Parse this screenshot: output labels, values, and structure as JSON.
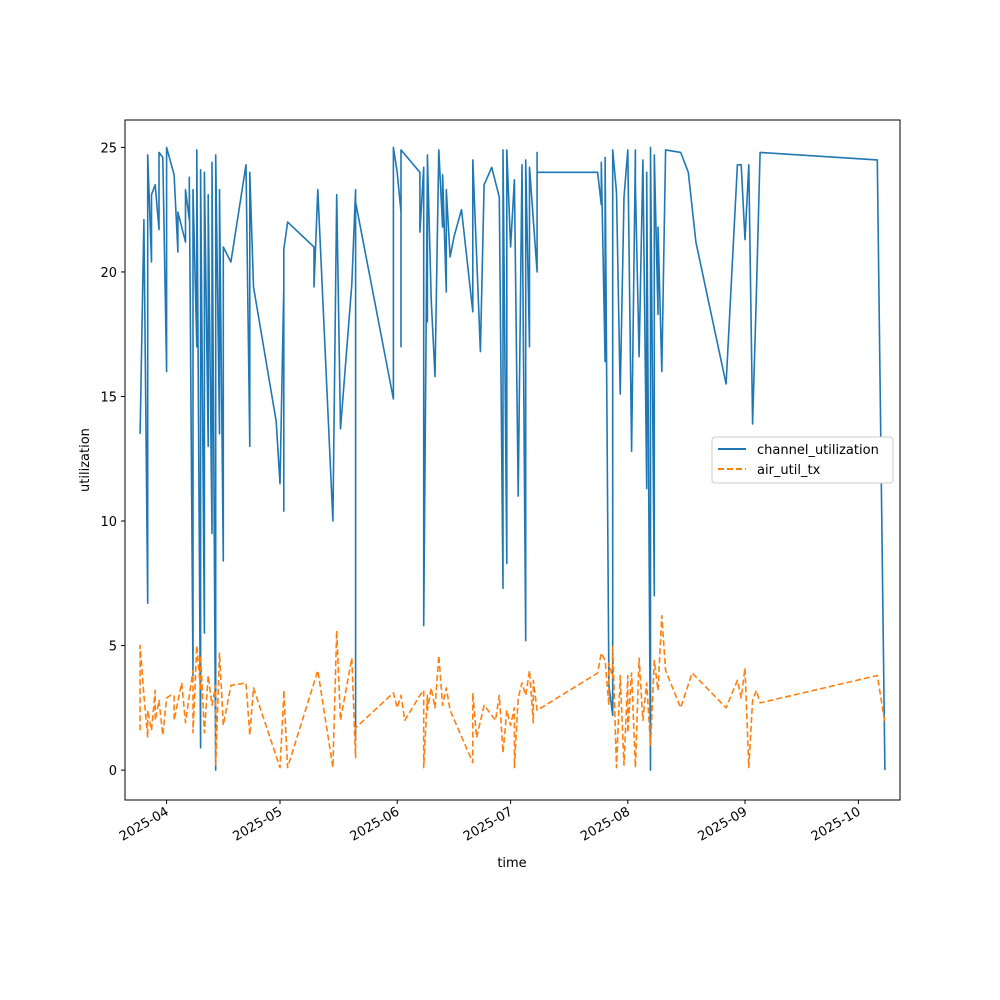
{
  "chart_data": {
    "type": "line",
    "title": "",
    "xlabel": "time",
    "ylabel": "utilization",
    "xlim": [
      "2025-03-21",
      "2025-10-12"
    ],
    "ylim": [
      -1.2,
      26.1
    ],
    "x_ticks": [
      "2025-04-01",
      "2025-05-01",
      "2025-06-01",
      "2025-07-01",
      "2025-08-01",
      "2025-09-01",
      "2025-10-01"
    ],
    "x_tick_labels": [
      "2025-04",
      "2025-05",
      "2025-06",
      "2025-07",
      "2025-08",
      "2025-09",
      "2025-10"
    ],
    "y_ticks": [
      0,
      5,
      10,
      15,
      20,
      25
    ],
    "grid": false,
    "legend_position": "center-right",
    "series": [
      {
        "name": "channel_utilization",
        "color": "#1f77b4",
        "style": "solid",
        "points": [
          [
            "2025-03-25",
            13.5
          ],
          [
            "2025-03-26",
            22.1
          ],
          [
            "2025-03-27",
            6.7
          ],
          [
            "2025-03-27",
            24.7
          ],
          [
            "2025-03-28",
            20.4
          ],
          [
            "2025-03-28",
            23.1
          ],
          [
            "2025-03-29",
            23.5
          ],
          [
            "2025-03-30",
            21.7
          ],
          [
            "2025-03-30",
            24.8
          ],
          [
            "2025-03-31",
            24.6
          ],
          [
            "2025-04-01",
            16.0
          ],
          [
            "2025-04-01",
            25.0
          ],
          [
            "2025-04-03",
            23.9
          ],
          [
            "2025-04-04",
            20.8
          ],
          [
            "2025-04-04",
            22.4
          ],
          [
            "2025-04-06",
            21.2
          ],
          [
            "2025-04-06",
            23.3
          ],
          [
            "2025-04-07",
            22.1
          ],
          [
            "2025-04-07",
            23.8
          ],
          [
            "2025-04-08",
            3.8
          ],
          [
            "2025-04-08",
            23.3
          ],
          [
            "2025-04-09",
            17.0
          ],
          [
            "2025-04-09",
            24.9
          ],
          [
            "2025-04-10",
            0.9
          ],
          [
            "2025-04-10",
            24.1
          ],
          [
            "2025-04-11",
            5.5
          ],
          [
            "2025-04-11",
            24.0
          ],
          [
            "2025-04-12",
            13.0
          ],
          [
            "2025-04-12",
            23.1
          ],
          [
            "2025-04-13",
            9.5
          ],
          [
            "2025-04-13",
            24.4
          ],
          [
            "2025-04-14",
            0.0
          ],
          [
            "2025-04-14",
            24.7
          ],
          [
            "2025-04-15",
            13.5
          ],
          [
            "2025-04-15",
            23.3
          ],
          [
            "2025-04-16",
            8.4
          ],
          [
            "2025-04-16",
            21.0
          ],
          [
            "2025-04-18",
            20.4
          ],
          [
            "2025-04-22",
            24.3
          ],
          [
            "2025-04-23",
            13.0
          ],
          [
            "2025-04-23",
            24.0
          ],
          [
            "2025-04-24",
            19.4
          ],
          [
            "2025-04-30",
            14.0
          ],
          [
            "2025-05-01",
            11.5
          ],
          [
            "2025-05-02",
            19.4
          ],
          [
            "2025-05-02",
            10.4
          ],
          [
            "2025-05-02",
            20.9
          ],
          [
            "2025-05-03",
            22.0
          ],
          [
            "2025-05-10",
            21.0
          ],
          [
            "2025-05-10",
            19.4
          ],
          [
            "2025-05-11",
            23.3
          ],
          [
            "2025-05-15",
            10.0
          ],
          [
            "2025-05-16",
            23.1
          ],
          [
            "2025-05-17",
            13.7
          ],
          [
            "2025-05-20",
            19.5
          ],
          [
            "2025-05-21",
            23.3
          ],
          [
            "2025-05-21",
            1.2
          ],
          [
            "2025-05-21",
            22.8
          ],
          [
            "2025-05-31",
            14.9
          ],
          [
            "2025-05-31",
            25.0
          ],
          [
            "2025-06-01",
            24.0
          ],
          [
            "2025-06-02",
            22.4
          ],
          [
            "2025-06-02",
            17.0
          ],
          [
            "2025-06-02",
            24.9
          ],
          [
            "2025-06-07",
            24.0
          ],
          [
            "2025-06-07",
            21.6
          ],
          [
            "2025-06-08",
            24.2
          ],
          [
            "2025-06-08",
            12.7
          ],
          [
            "2025-06-08",
            5.8
          ],
          [
            "2025-06-09",
            24.1
          ],
          [
            "2025-06-09",
            18.0
          ],
          [
            "2025-06-09",
            24.7
          ],
          [
            "2025-06-10",
            18.9
          ],
          [
            "2025-06-11",
            15.8
          ],
          [
            "2025-06-12",
            24.9
          ],
          [
            "2025-06-13",
            21.8
          ],
          [
            "2025-06-13",
            23.9
          ],
          [
            "2025-06-14",
            19.2
          ],
          [
            "2025-06-14",
            23.3
          ],
          [
            "2025-06-15",
            20.6
          ],
          [
            "2025-06-16",
            21.4
          ],
          [
            "2025-06-18",
            22.5
          ],
          [
            "2025-06-21",
            18.4
          ],
          [
            "2025-06-21",
            24.5
          ],
          [
            "2025-06-23",
            16.8
          ],
          [
            "2025-06-24",
            23.5
          ],
          [
            "2025-06-26",
            24.2
          ],
          [
            "2025-06-28",
            23.0
          ],
          [
            "2025-06-29",
            7.3
          ],
          [
            "2025-06-29",
            24.9
          ],
          [
            "2025-06-30",
            8.3
          ],
          [
            "2025-06-30",
            24.9
          ],
          [
            "2025-07-01",
            21.0
          ],
          [
            "2025-07-02",
            23.7
          ],
          [
            "2025-07-03",
            11.0
          ],
          [
            "2025-07-04",
            24.3
          ],
          [
            "2025-07-05",
            5.2
          ],
          [
            "2025-07-05",
            24.5
          ],
          [
            "2025-07-06",
            17.0
          ],
          [
            "2025-07-06",
            24.2
          ],
          [
            "2025-07-08",
            20.0
          ],
          [
            "2025-07-08",
            24.8
          ],
          [
            "2025-07-08",
            24.0
          ],
          [
            "2025-07-24",
            24.0
          ],
          [
            "2025-07-25",
            22.7
          ],
          [
            "2025-07-25",
            24.4
          ],
          [
            "2025-07-26",
            16.4
          ],
          [
            "2025-07-26",
            24.6
          ],
          [
            "2025-07-27",
            3.4
          ],
          [
            "2025-07-28",
            2.2
          ],
          [
            "2025-07-28",
            24.9
          ],
          [
            "2025-07-29",
            23.2
          ],
          [
            "2025-07-30",
            15.1
          ],
          [
            "2025-07-31",
            23.0
          ],
          [
            "2025-08-01",
            24.9
          ],
          [
            "2025-08-02",
            12.8
          ],
          [
            "2025-08-03",
            24.9
          ],
          [
            "2025-08-03",
            23.5
          ],
          [
            "2025-08-04",
            16.6
          ],
          [
            "2025-08-05",
            24.5
          ],
          [
            "2025-08-06",
            11.3
          ],
          [
            "2025-08-06",
            24.0
          ],
          [
            "2025-08-07",
            0.0
          ],
          [
            "2025-08-07",
            25.0
          ],
          [
            "2025-08-08",
            7.0
          ],
          [
            "2025-08-08",
            24.7
          ],
          [
            "2025-08-09",
            18.3
          ],
          [
            "2025-08-09",
            21.8
          ],
          [
            "2025-08-10",
            16.0
          ],
          [
            "2025-08-11",
            24.9
          ],
          [
            "2025-08-15",
            24.8
          ],
          [
            "2025-08-17",
            24.0
          ],
          [
            "2025-08-19",
            21.2
          ],
          [
            "2025-08-27",
            15.5
          ],
          [
            "2025-08-30",
            24.3
          ],
          [
            "2025-08-31",
            24.3
          ],
          [
            "2025-09-01",
            21.3
          ],
          [
            "2025-09-02",
            24.3
          ],
          [
            "2025-09-03",
            13.9
          ],
          [
            "2025-09-04",
            19.0
          ],
          [
            "2025-09-05",
            24.8
          ],
          [
            "2025-10-06",
            24.5
          ],
          [
            "2025-10-08",
            0.0
          ]
        ]
      },
      {
        "name": "air_util_tx",
        "color": "#ff7f0e",
        "style": "dashed",
        "points": [
          [
            "2025-03-25",
            1.6
          ],
          [
            "2025-03-25",
            5.0
          ],
          [
            "2025-03-26",
            3.0
          ],
          [
            "2025-03-27",
            1.3
          ],
          [
            "2025-03-27",
            2.4
          ],
          [
            "2025-03-28",
            1.6
          ],
          [
            "2025-03-29",
            3.2
          ],
          [
            "2025-03-29",
            2.0
          ],
          [
            "2025-03-30",
            2.8
          ],
          [
            "2025-03-31",
            1.4
          ],
          [
            "2025-04-01",
            2.9
          ],
          [
            "2025-04-02",
            3.0
          ],
          [
            "2025-04-03",
            3.0
          ],
          [
            "2025-04-03",
            2.0
          ],
          [
            "2025-04-05",
            3.5
          ],
          [
            "2025-04-06",
            1.9
          ],
          [
            "2025-04-07",
            3.0
          ],
          [
            "2025-04-08",
            4.0
          ],
          [
            "2025-04-08",
            1.5
          ],
          [
            "2025-04-09",
            5.0
          ],
          [
            "2025-04-10",
            3.2
          ],
          [
            "2025-04-10",
            4.6
          ],
          [
            "2025-04-11",
            1.5
          ],
          [
            "2025-04-12",
            3.8
          ],
          [
            "2025-04-13",
            2.6
          ],
          [
            "2025-04-14",
            3.4
          ],
          [
            "2025-04-14",
            0.2
          ],
          [
            "2025-04-15",
            4.7
          ],
          [
            "2025-04-16",
            1.8
          ],
          [
            "2025-04-18",
            3.4
          ],
          [
            "2025-04-22",
            3.5
          ],
          [
            "2025-04-23",
            1.4
          ],
          [
            "2025-04-24",
            3.3
          ],
          [
            "2025-05-01",
            0.1
          ],
          [
            "2025-05-02",
            3.0
          ],
          [
            "2025-05-02",
            3.2
          ],
          [
            "2025-05-03",
            0.1
          ],
          [
            "2025-05-11",
            4.0
          ],
          [
            "2025-05-15",
            0.1
          ],
          [
            "2025-05-16",
            5.6
          ],
          [
            "2025-05-17",
            2.0
          ],
          [
            "2025-05-20",
            4.5
          ],
          [
            "2025-05-21",
            0.5
          ],
          [
            "2025-05-21",
            1.7
          ],
          [
            "2025-05-31",
            3.1
          ],
          [
            "2025-06-01",
            2.5
          ],
          [
            "2025-06-02",
            3.0
          ],
          [
            "2025-06-03",
            2.0
          ],
          [
            "2025-06-07",
            3.0
          ],
          [
            "2025-06-08",
            3.2
          ],
          [
            "2025-06-08",
            0.1
          ],
          [
            "2025-06-09",
            3.0
          ],
          [
            "2025-06-09",
            2.4
          ],
          [
            "2025-06-10",
            3.3
          ],
          [
            "2025-06-11",
            2.5
          ],
          [
            "2025-06-12",
            4.6
          ],
          [
            "2025-06-13",
            2.6
          ],
          [
            "2025-06-14",
            3.3
          ],
          [
            "2025-06-15",
            2.4
          ],
          [
            "2025-06-21",
            0.3
          ],
          [
            "2025-06-21",
            3.1
          ],
          [
            "2025-06-22",
            1.3
          ],
          [
            "2025-06-24",
            2.6
          ],
          [
            "2025-06-27",
            2.0
          ],
          [
            "2025-06-28",
            3.0
          ],
          [
            "2025-06-29",
            0.7
          ],
          [
            "2025-06-30",
            2.4
          ],
          [
            "2025-07-01",
            1.8
          ],
          [
            "2025-07-02",
            2.5
          ],
          [
            "2025-07-02",
            0.1
          ],
          [
            "2025-07-03",
            2.9
          ],
          [
            "2025-07-04",
            3.5
          ],
          [
            "2025-07-05",
            3.0
          ],
          [
            "2025-07-06",
            4.0
          ],
          [
            "2025-07-07",
            1.9
          ],
          [
            "2025-07-07",
            3.6
          ],
          [
            "2025-07-08",
            2.4
          ],
          [
            "2025-07-24",
            3.9
          ],
          [
            "2025-07-25",
            4.7
          ],
          [
            "2025-07-26",
            4.4
          ],
          [
            "2025-07-27",
            2.6
          ],
          [
            "2025-07-27",
            4.3
          ],
          [
            "2025-07-28",
            3.7
          ],
          [
            "2025-07-28",
            5.0
          ],
          [
            "2025-07-29",
            0.1
          ],
          [
            "2025-07-30",
            3.8
          ],
          [
            "2025-07-31",
            0.2
          ],
          [
            "2025-08-01",
            3.8
          ],
          [
            "2025-08-01",
            1.5
          ],
          [
            "2025-08-02",
            3.9
          ],
          [
            "2025-08-03",
            0.1
          ],
          [
            "2025-08-04",
            4.5
          ],
          [
            "2025-08-05",
            2.0
          ],
          [
            "2025-08-06",
            3.5
          ],
          [
            "2025-08-07",
            1.0
          ],
          [
            "2025-08-08",
            4.4
          ],
          [
            "2025-08-09",
            3.2
          ],
          [
            "2025-08-10",
            6.2
          ],
          [
            "2025-08-11",
            4.0
          ],
          [
            "2025-08-15",
            2.5
          ],
          [
            "2025-08-18",
            3.9
          ],
          [
            "2025-08-27",
            2.5
          ],
          [
            "2025-08-30",
            3.6
          ],
          [
            "2025-08-31",
            2.9
          ],
          [
            "2025-09-01",
            4.1
          ],
          [
            "2025-09-02",
            0.1
          ],
          [
            "2025-09-03",
            2.8
          ],
          [
            "2025-09-04",
            3.2
          ],
          [
            "2025-09-05",
            2.7
          ],
          [
            "2025-10-06",
            3.8
          ],
          [
            "2025-10-08",
            1.9
          ]
        ]
      }
    ]
  }
}
